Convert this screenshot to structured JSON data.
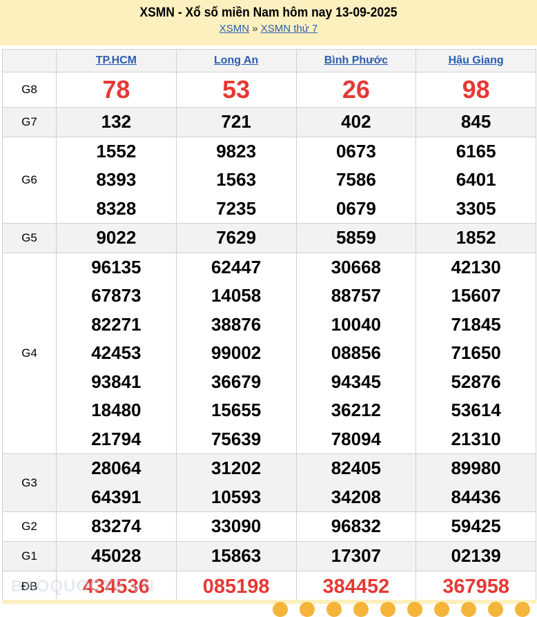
{
  "header": {
    "title": "XSMN - Xổ số miền Nam hôm nay 13-09-2025",
    "breadcrumb": [
      "XSMN",
      "XSMN thứ 7"
    ],
    "separator": "»"
  },
  "provinces": [
    "TP.HCM",
    "Long An",
    "Bình Phước",
    "Hậu Giang"
  ],
  "prizes": [
    {
      "label": "G8",
      "values": [
        [
          "78"
        ],
        [
          "53"
        ],
        [
          "26"
        ],
        [
          "98"
        ]
      ]
    },
    {
      "label": "G7",
      "values": [
        [
          "132"
        ],
        [
          "721"
        ],
        [
          "402"
        ],
        [
          "845"
        ]
      ]
    },
    {
      "label": "G6",
      "values": [
        [
          "1552",
          "8393",
          "8328"
        ],
        [
          "9823",
          "1563",
          "7235"
        ],
        [
          "0673",
          "7586",
          "0679"
        ],
        [
          "6165",
          "6401",
          "3305"
        ]
      ]
    },
    {
      "label": "G5",
      "values": [
        [
          "9022"
        ],
        [
          "7629"
        ],
        [
          "5859"
        ],
        [
          "1852"
        ]
      ]
    },
    {
      "label": "G4",
      "values": [
        [
          "96135",
          "67873",
          "82271",
          "42453",
          "93841",
          "18480",
          "21794"
        ],
        [
          "62447",
          "14058",
          "38876",
          "99002",
          "36679",
          "15655",
          "75639"
        ],
        [
          "30668",
          "88757",
          "10040",
          "08856",
          "94345",
          "36212",
          "78094"
        ],
        [
          "42130",
          "15607",
          "71845",
          "71650",
          "52876",
          "53614",
          "21310"
        ]
      ]
    },
    {
      "label": "G3",
      "values": [
        [
          "28064",
          "64391"
        ],
        [
          "31202",
          "10593"
        ],
        [
          "82405",
          "34208"
        ],
        [
          "89980",
          "84436"
        ]
      ]
    },
    {
      "label": "G2",
      "values": [
        [
          "83274"
        ],
        [
          "33090"
        ],
        [
          "96832"
        ],
        [
          "59425"
        ]
      ]
    },
    {
      "label": "G1",
      "values": [
        [
          "45028"
        ],
        [
          "15863"
        ],
        [
          "17307"
        ],
        [
          "02139"
        ]
      ]
    },
    {
      "label": "ĐB",
      "values": [
        [
          "434536"
        ],
        [
          "085198"
        ],
        [
          "384452"
        ],
        [
          "367958"
        ]
      ]
    }
  ],
  "watermark": "BAOQUOCTE.VN",
  "colors": {
    "header_bg": "#fdf0bf",
    "link": "#2a5db0",
    "special": "#e53935",
    "alt_row": "#f2f2f2"
  }
}
